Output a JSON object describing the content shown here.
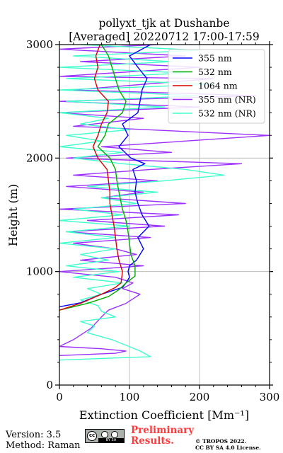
{
  "chart_data": {
    "type": "line",
    "title": "pollyxt_tjk at Dushanbe",
    "subtitle": "[Averaged] 20220712 17:00-17:59",
    "xlabel": "Extinction Coefficient [Mm⁻¹]",
    "ylabel": "Height (m)",
    "xlim": [
      0,
      300
    ],
    "ylim": [
      0,
      3000
    ],
    "xticks": [
      "0",
      "100",
      "200",
      "300"
    ],
    "yticks": [
      "0",
      "1000",
      "2000",
      "3000"
    ],
    "grid": true,
    "legend_position": "top-right",
    "series": [
      {
        "name": "355 nm",
        "color": "#0000ff",
        "points": [
          [
            0,
            690
          ],
          [
            30,
            725
          ],
          [
            60,
            800
          ],
          [
            90,
            860
          ],
          [
            95,
            900
          ],
          [
            100,
            950
          ],
          [
            98,
            1000
          ],
          [
            100,
            1050
          ],
          [
            110,
            1100
          ],
          [
            120,
            1200
          ],
          [
            112,
            1300
          ],
          [
            128,
            1400
          ],
          [
            118,
            1500
          ],
          [
            112,
            1600
          ],
          [
            108,
            1700
          ],
          [
            110,
            1800
          ],
          [
            105,
            1900
          ],
          [
            122,
            1950
          ],
          [
            102,
            2000
          ],
          [
            85,
            2100
          ],
          [
            98,
            2200
          ],
          [
            90,
            2300
          ],
          [
            112,
            2400
          ],
          [
            115,
            2500
          ],
          [
            118,
            2600
          ],
          [
            125,
            2700
          ],
          [
            112,
            2800
          ],
          [
            100,
            2900
          ],
          [
            130,
            3000
          ]
        ]
      },
      {
        "name": "532 nm",
        "color": "#00aa00",
        "points": [
          [
            0,
            660
          ],
          [
            40,
            720
          ],
          [
            70,
            780
          ],
          [
            85,
            840
          ],
          [
            95,
            900
          ],
          [
            108,
            960
          ],
          [
            108,
            1050
          ],
          [
            102,
            1150
          ],
          [
            100,
            1250
          ],
          [
            98,
            1350
          ],
          [
            95,
            1450
          ],
          [
            90,
            1550
          ],
          [
            85,
            1700
          ],
          [
            82,
            1800
          ],
          [
            80,
            1900
          ],
          [
            72,
            2000
          ],
          [
            55,
            2100
          ],
          [
            65,
            2200
          ],
          [
            70,
            2300
          ],
          [
            90,
            2400
          ],
          [
            95,
            2500
          ],
          [
            85,
            2600
          ],
          [
            80,
            2700
          ],
          [
            75,
            2800
          ],
          [
            70,
            2900
          ],
          [
            60,
            3000
          ]
        ]
      },
      {
        "name": "1064 nm",
        "color": "#dd0000",
        "points": [
          [
            0,
            660
          ],
          [
            30,
            720
          ],
          [
            60,
            800
          ],
          [
            80,
            860
          ],
          [
            88,
            900
          ],
          [
            90,
            1000
          ],
          [
            85,
            1100
          ],
          [
            82,
            1200
          ],
          [
            80,
            1300
          ],
          [
            78,
            1400
          ],
          [
            75,
            1500
          ],
          [
            72,
            1600
          ],
          [
            72,
            1700
          ],
          [
            70,
            1800
          ],
          [
            68,
            1900
          ],
          [
            55,
            2000
          ],
          [
            48,
            2100
          ],
          [
            55,
            2200
          ],
          [
            60,
            2300
          ],
          [
            68,
            2400
          ],
          [
            70,
            2500
          ],
          [
            55,
            2600
          ],
          [
            50,
            2700
          ],
          [
            55,
            2800
          ],
          [
            52,
            2900
          ],
          [
            58,
            3000
          ]
        ]
      },
      {
        "name": "355 nm (NR)",
        "color": "#9b30ff",
        "points": [
          [
            0,
            260
          ],
          [
            80,
            280
          ],
          [
            95,
            300
          ],
          [
            60,
            320
          ],
          [
            0,
            340
          ],
          [
            20,
            400
          ],
          [
            45,
            500
          ],
          [
            60,
            600
          ],
          [
            70,
            660
          ],
          [
            95,
            720
          ],
          [
            115,
            800
          ],
          [
            90,
            850
          ],
          [
            105,
            900
          ],
          [
            80,
            950
          ],
          [
            0,
            1000
          ],
          [
            120,
            1050
          ],
          [
            30,
            1100
          ],
          [
            110,
            1150
          ],
          [
            80,
            1200
          ],
          [
            20,
            1250
          ],
          [
            130,
            1300
          ],
          [
            10,
            1350
          ],
          [
            150,
            1400
          ],
          [
            40,
            1450
          ],
          [
            170,
            1500
          ],
          [
            0,
            1550
          ],
          [
            180,
            1600
          ],
          [
            60,
            1650
          ],
          [
            120,
            1700
          ],
          [
            10,
            1750
          ],
          [
            140,
            1800
          ],
          [
            20,
            1850
          ],
          [
            130,
            1900
          ],
          [
            260,
            1950
          ],
          [
            10,
            2000
          ],
          [
            160,
            2050
          ],
          [
            60,
            2100
          ],
          [
            300,
            2200
          ],
          [
            20,
            2280
          ],
          [
            120,
            2350
          ],
          [
            0,
            2400
          ],
          [
            200,
            2450
          ],
          [
            0,
            2500
          ],
          [
            280,
            2550
          ],
          [
            20,
            2600
          ],
          [
            220,
            2700
          ],
          [
            0,
            2720
          ],
          [
            200,
            2800
          ],
          [
            30,
            2850
          ],
          [
            180,
            2900
          ],
          [
            0,
            2960
          ],
          [
            140,
            3000
          ]
        ]
      },
      {
        "name": "532 nm (NR)",
        "color": "#40ffcc",
        "points": [
          [
            0,
            220
          ],
          [
            130,
            250
          ],
          [
            115,
            300
          ],
          [
            95,
            350
          ],
          [
            75,
            400
          ],
          [
            40,
            460
          ],
          [
            50,
            520
          ],
          [
            30,
            560
          ],
          [
            80,
            600
          ],
          [
            60,
            650
          ],
          [
            55,
            700
          ],
          [
            30,
            750
          ],
          [
            60,
            800
          ],
          [
            40,
            850
          ],
          [
            90,
            900
          ],
          [
            20,
            950
          ],
          [
            85,
            1000
          ],
          [
            10,
            1050
          ],
          [
            70,
            1100
          ],
          [
            30,
            1150
          ],
          [
            80,
            1200
          ],
          [
            0,
            1250
          ],
          [
            80,
            1300
          ],
          [
            10,
            1350
          ],
          [
            100,
            1400
          ],
          [
            0,
            1450
          ],
          [
            90,
            1500
          ],
          [
            20,
            1550
          ],
          [
            110,
            1600
          ],
          [
            60,
            1650
          ],
          [
            140,
            1700
          ],
          [
            40,
            1750
          ],
          [
            150,
            1800
          ],
          [
            235,
            1850
          ],
          [
            180,
            1900
          ],
          [
            90,
            1950
          ],
          [
            20,
            2000
          ],
          [
            90,
            2050
          ],
          [
            0,
            2100
          ],
          [
            60,
            2150
          ],
          [
            10,
            2200
          ],
          [
            100,
            2250
          ],
          [
            30,
            2300
          ],
          [
            70,
            2350
          ],
          [
            0,
            2400
          ],
          [
            150,
            2450
          ],
          [
            10,
            2500
          ],
          [
            200,
            2550
          ],
          [
            0,
            2600
          ],
          [
            220,
            2650
          ],
          [
            10,
            2700
          ],
          [
            180,
            2750
          ],
          [
            0,
            2800
          ],
          [
            160,
            2850
          ],
          [
            20,
            2900
          ],
          [
            200,
            2950
          ],
          [
            30,
            3000
          ]
        ]
      }
    ]
  },
  "footer": {
    "version": "Version: 3.5",
    "method": "Method: Raman",
    "cc_label": "cc",
    "cc_strip": "BY   SA",
    "preliminary_line1": "Preliminary",
    "preliminary_line2": "Results.",
    "copyright_line1": "© TROPOS 2022.",
    "copyright_line2": "CC BY SA 4.0 License."
  }
}
